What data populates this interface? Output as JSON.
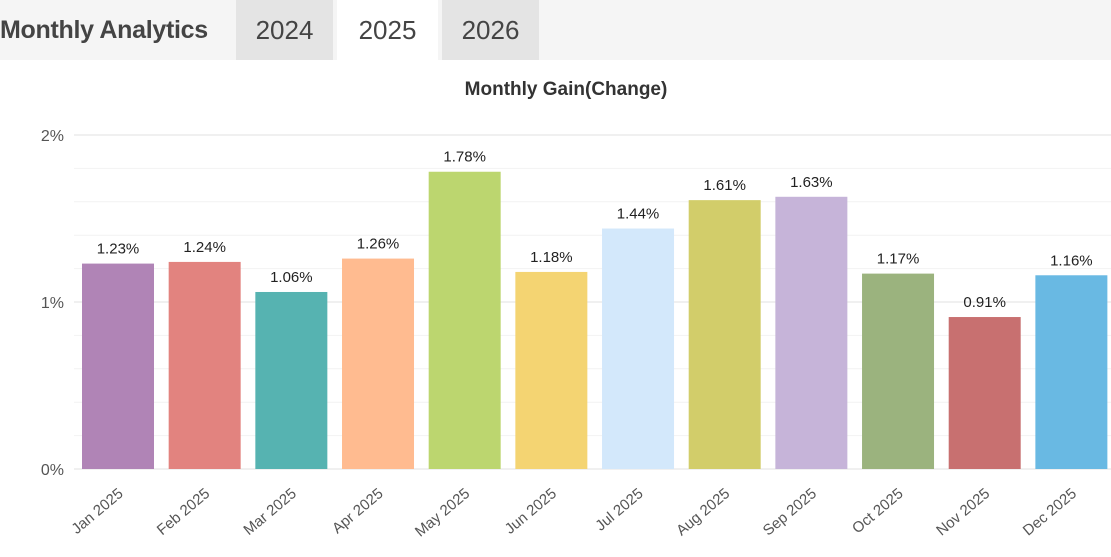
{
  "header": {
    "title": "Monthly Analytics",
    "tabs": [
      {
        "label": "2024",
        "active": false
      },
      {
        "label": "2025",
        "active": true
      },
      {
        "label": "2026",
        "active": false
      }
    ]
  },
  "chart_data": {
    "type": "bar",
    "title": "Monthly Gain(Change)",
    "categories": [
      "Jan 2025",
      "Feb 2025",
      "Mar 2025",
      "Apr 2025",
      "May 2025",
      "Jun 2025",
      "Jul 2025",
      "Aug 2025",
      "Sep 2025",
      "Oct 2025",
      "Nov 2025",
      "Dec 2025"
    ],
    "values": [
      1.23,
      1.24,
      1.06,
      1.26,
      1.78,
      1.18,
      1.44,
      1.61,
      1.63,
      1.17,
      0.91,
      1.16
    ],
    "value_labels": [
      "1.23%",
      "1.24%",
      "1.06%",
      "1.26%",
      "1.78%",
      "1.18%",
      "1.44%",
      "1.61%",
      "1.63%",
      "1.17%",
      "0.91%",
      "1.16%"
    ],
    "colors": [
      "#b084b6",
      "#e2837f",
      "#56b3b1",
      "#ffbb90",
      "#bcd66f",
      "#f4d472",
      "#d3e8fb",
      "#d2cd6a",
      "#c6b4d9",
      "#9bb37e",
      "#c87070",
      "#69b9e3"
    ],
    "ylim": [
      0,
      2
    ],
    "yticks": [
      0,
      1,
      2
    ],
    "ytick_labels": [
      "0%",
      "1%",
      "2%"
    ],
    "grid": true,
    "legend": "none"
  }
}
